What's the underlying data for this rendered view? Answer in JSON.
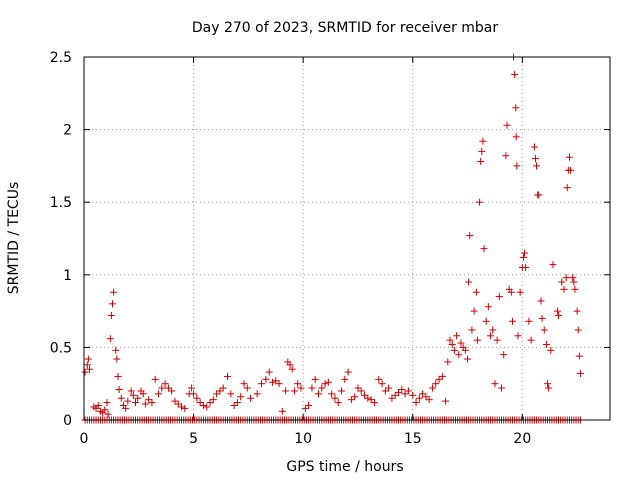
{
  "chart_data": {
    "type": "scatter",
    "title": "Day 270 of 2023, SRMTID for receiver mbar",
    "xlabel": "GPS time / hours",
    "ylabel": "SRMTID / TECUs",
    "xlim": [
      0,
      24
    ],
    "ylim": [
      0,
      2.5
    ],
    "xticks": [
      0,
      5,
      10,
      15,
      20
    ],
    "yticks": [
      0,
      0.5,
      1,
      1.5,
      2,
      2.5
    ],
    "xtick_labels": [
      "0",
      "5",
      "10",
      "15",
      "20"
    ],
    "ytick_labels": [
      "0",
      "0.5",
      "1",
      "1.5",
      "2",
      "2.5"
    ],
    "grid": true,
    "marker": "+",
    "series": [
      {
        "name": "SRMTID",
        "color": "#cc0000",
        "points": [
          [
            0.05,
            0.33
          ],
          [
            0.15,
            0.38
          ],
          [
            0.2,
            0.42
          ],
          [
            0.25,
            0.35
          ],
          [
            0.45,
            0.09
          ],
          [
            0.55,
            0.08
          ],
          [
            0.65,
            0.1
          ],
          [
            0.75,
            0.06
          ],
          [
            0.85,
            0.05
          ],
          [
            0.95,
            0.07
          ],
          [
            1.05,
            0.12
          ],
          [
            1.1,
            0.04
          ],
          [
            1.2,
            0.56
          ],
          [
            1.25,
            0.72
          ],
          [
            1.3,
            0.8
          ],
          [
            1.35,
            0.88
          ],
          [
            1.45,
            0.48
          ],
          [
            1.5,
            0.42
          ],
          [
            1.55,
            0.3
          ],
          [
            1.6,
            0.21
          ],
          [
            1.7,
            0.15
          ],
          [
            1.8,
            0.1
          ],
          [
            1.9,
            0.08
          ],
          [
            2.0,
            0.13
          ],
          [
            2.15,
            0.2
          ],
          [
            2.25,
            0.17
          ],
          [
            2.35,
            0.12
          ],
          [
            2.45,
            0.15
          ],
          [
            2.6,
            0.2
          ],
          [
            2.7,
            0.18
          ],
          [
            2.8,
            0.11
          ],
          [
            2.95,
            0.14
          ],
          [
            3.1,
            0.12
          ],
          [
            3.25,
            0.28
          ],
          [
            3.4,
            0.18
          ],
          [
            3.55,
            0.22
          ],
          [
            3.7,
            0.25
          ],
          [
            3.85,
            0.22
          ],
          [
            4.0,
            0.2
          ],
          [
            4.15,
            0.13
          ],
          [
            4.3,
            0.11
          ],
          [
            4.45,
            0.09
          ],
          [
            4.6,
            0.08
          ],
          [
            4.8,
            0.18
          ],
          [
            4.9,
            0.22
          ],
          [
            5.0,
            0.18
          ],
          [
            5.15,
            0.15
          ],
          [
            5.3,
            0.12
          ],
          [
            5.45,
            0.1
          ],
          [
            5.6,
            0.09
          ],
          [
            5.75,
            0.12
          ],
          [
            5.9,
            0.14
          ],
          [
            6.05,
            0.18
          ],
          [
            6.2,
            0.2
          ],
          [
            6.35,
            0.22
          ],
          [
            6.55,
            0.3
          ],
          [
            6.7,
            0.18
          ],
          [
            6.85,
            0.1
          ],
          [
            7.0,
            0.12
          ],
          [
            7.15,
            0.16
          ],
          [
            7.3,
            0.25
          ],
          [
            7.45,
            0.22
          ],
          [
            7.6,
            0.15
          ],
          [
            7.9,
            0.18
          ],
          [
            8.1,
            0.25
          ],
          [
            8.3,
            0.28
          ],
          [
            8.45,
            0.33
          ],
          [
            8.6,
            0.26
          ],
          [
            8.75,
            0.27
          ],
          [
            8.9,
            0.25
          ],
          [
            9.05,
            0.06
          ],
          [
            9.2,
            0.2
          ],
          [
            9.3,
            0.4
          ],
          [
            9.4,
            0.38
          ],
          [
            9.5,
            0.35
          ],
          [
            9.6,
            0.2
          ],
          [
            9.75,
            0.25
          ],
          [
            9.9,
            0.22
          ],
          [
            10.1,
            0.08
          ],
          [
            10.25,
            0.1
          ],
          [
            10.4,
            0.22
          ],
          [
            10.55,
            0.28
          ],
          [
            10.7,
            0.18
          ],
          [
            10.85,
            0.22
          ],
          [
            11.0,
            0.25
          ],
          [
            11.15,
            0.26
          ],
          [
            11.3,
            0.18
          ],
          [
            11.45,
            0.15
          ],
          [
            11.6,
            0.12
          ],
          [
            11.75,
            0.2
          ],
          [
            11.9,
            0.28
          ],
          [
            12.05,
            0.33
          ],
          [
            12.2,
            0.14
          ],
          [
            12.35,
            0.16
          ],
          [
            12.5,
            0.22
          ],
          [
            12.65,
            0.2
          ],
          [
            12.8,
            0.17
          ],
          [
            12.95,
            0.15
          ],
          [
            13.1,
            0.14
          ],
          [
            13.25,
            0.12
          ],
          [
            13.45,
            0.28
          ],
          [
            13.6,
            0.25
          ],
          [
            13.75,
            0.2
          ],
          [
            13.9,
            0.22
          ],
          [
            14.05,
            0.15
          ],
          [
            14.2,
            0.17
          ],
          [
            14.35,
            0.19
          ],
          [
            14.5,
            0.21
          ],
          [
            14.65,
            0.18
          ],
          [
            14.8,
            0.2
          ],
          [
            15.0,
            0.17
          ],
          [
            15.15,
            0.12
          ],
          [
            15.3,
            0.15
          ],
          [
            15.45,
            0.18
          ],
          [
            15.6,
            0.16
          ],
          [
            15.75,
            0.14
          ],
          [
            15.9,
            0.22
          ],
          [
            16.05,
            0.25
          ],
          [
            16.2,
            0.28
          ],
          [
            16.35,
            0.3
          ],
          [
            16.5,
            0.13
          ],
          [
            16.6,
            0.4
          ],
          [
            16.7,
            0.55
          ],
          [
            16.8,
            0.52
          ],
          [
            16.9,
            0.48
          ],
          [
            17.0,
            0.58
          ],
          [
            17.1,
            0.45
          ],
          [
            17.2,
            0.53
          ],
          [
            17.3,
            0.5
          ],
          [
            17.4,
            0.48
          ],
          [
            17.5,
            0.42
          ],
          [
            17.55,
            0.95
          ],
          [
            17.6,
            1.27
          ],
          [
            17.7,
            0.62
          ],
          [
            17.8,
            0.75
          ],
          [
            17.9,
            0.88
          ],
          [
            17.95,
            0.55
          ],
          [
            18.05,
            1.5
          ],
          [
            18.1,
            1.78
          ],
          [
            18.15,
            1.85
          ],
          [
            18.2,
            1.92
          ],
          [
            18.25,
            1.18
          ],
          [
            18.35,
            0.68
          ],
          [
            18.45,
            0.78
          ],
          [
            18.55,
            0.58
          ],
          [
            18.65,
            0.62
          ],
          [
            18.75,
            0.25
          ],
          [
            18.85,
            0.55
          ],
          [
            18.95,
            0.85
          ],
          [
            19.05,
            0.22
          ],
          [
            19.15,
            0.45
          ],
          [
            19.25,
            1.82
          ],
          [
            19.3,
            2.03
          ],
          [
            19.4,
            0.9
          ],
          [
            19.5,
            0.88
          ],
          [
            19.55,
            0.68
          ],
          [
            19.6,
            2.5
          ],
          [
            19.65,
            2.38
          ],
          [
            19.7,
            2.15
          ],
          [
            19.72,
            1.95
          ],
          [
            19.75,
            1.75
          ],
          [
            19.8,
            0.58
          ],
          [
            19.9,
            0.88
          ],
          [
            20.0,
            1.05
          ],
          [
            20.05,
            1.12
          ],
          [
            20.1,
            1.15
          ],
          [
            20.15,
            1.05
          ],
          [
            20.3,
            0.68
          ],
          [
            20.4,
            0.55
          ],
          [
            20.55,
            1.88
          ],
          [
            20.6,
            1.8
          ],
          [
            20.65,
            1.75
          ],
          [
            20.7,
            1.55
          ],
          [
            20.75,
            1.55
          ],
          [
            20.85,
            0.82
          ],
          [
            20.9,
            0.7
          ],
          [
            21.0,
            0.62
          ],
          [
            21.1,
            0.52
          ],
          [
            21.15,
            0.25
          ],
          [
            21.2,
            0.22
          ],
          [
            21.3,
            0.48
          ],
          [
            21.4,
            1.07
          ],
          [
            21.6,
            0.75
          ],
          [
            21.65,
            0.72
          ],
          [
            21.8,
            0.95
          ],
          [
            21.9,
            0.9
          ],
          [
            22.0,
            0.98
          ],
          [
            22.05,
            1.6
          ],
          [
            22.1,
            1.72
          ],
          [
            22.15,
            1.81
          ],
          [
            22.2,
            1.72
          ],
          [
            22.3,
            0.98
          ],
          [
            22.35,
            0.95
          ],
          [
            22.4,
            0.9
          ],
          [
            22.5,
            0.75
          ],
          [
            22.55,
            0.62
          ],
          [
            22.6,
            0.44
          ],
          [
            22.65,
            0.32
          ]
        ],
        "zero_baseline": {
          "from": 0.05,
          "to": 22.7,
          "step": 0.1,
          "value": 0
        }
      }
    ]
  }
}
